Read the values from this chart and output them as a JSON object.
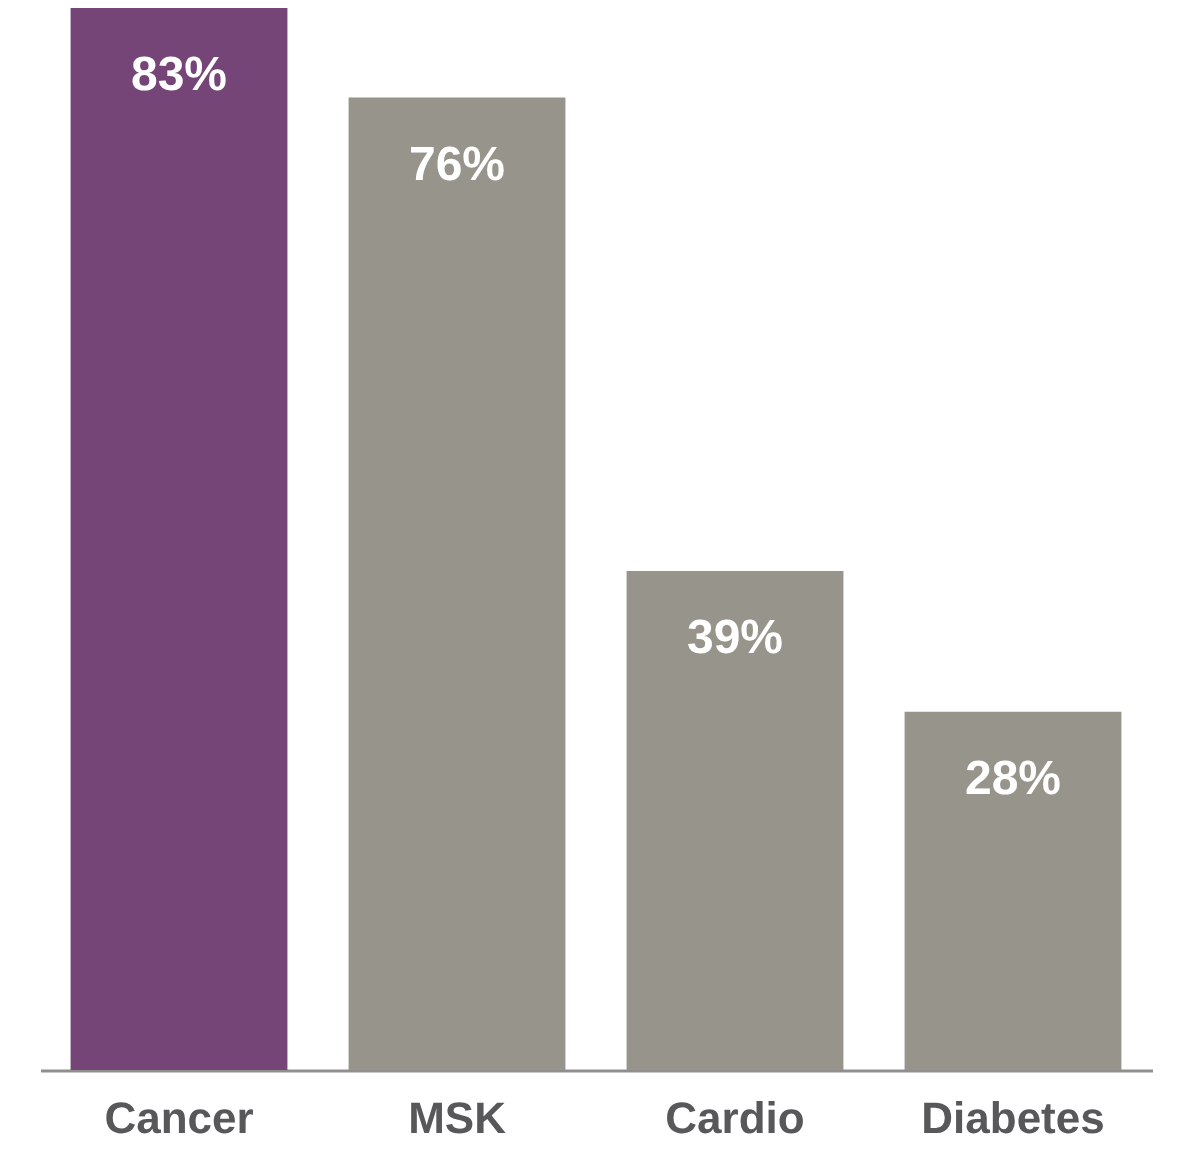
{
  "chart_data": {
    "type": "bar",
    "categories": [
      "Cancer",
      "MSK",
      "Cardio",
      "Diabetes"
    ],
    "values": [
      83,
      76,
      39,
      28
    ],
    "colors": [
      "#764577",
      "#97948b",
      "#97948b",
      "#97948b"
    ],
    "value_labels": [
      "83%",
      "76%",
      "39%",
      "28%"
    ]
  }
}
